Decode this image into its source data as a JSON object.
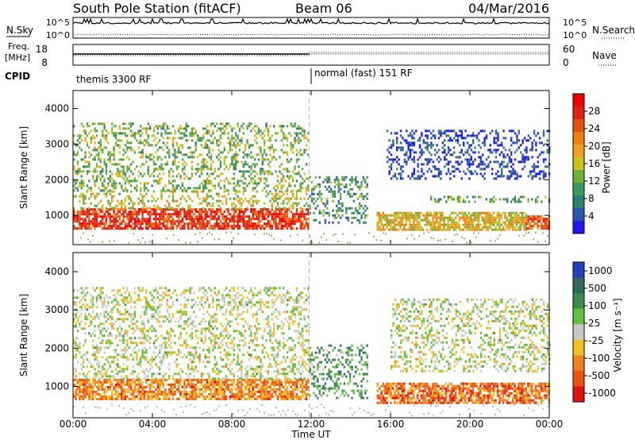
{
  "header": {
    "title": "South Pole Station (fitACF)",
    "beam": "Beam 06",
    "date": "04/Mar/2016"
  },
  "strips": {
    "nsky_label": "N.Sky",
    "nsearch_label": "N.Search",
    "nsky_tick_top": "10^5",
    "nsky_tick_bottom": "10^0",
    "freq_label_1": "Freq.",
    "freq_label_2": "[MHz]",
    "freq_tick_top": "18",
    "freq_tick_bottom": "8",
    "nave_label": "Nave",
    "nave_tick_top": "60",
    "nave_tick_bottom": "0",
    "cpid_label": "CPID",
    "cpid_segments": [
      "themis 3300 RF",
      "normal (fast) 151 RF"
    ]
  },
  "chart_data": [
    {
      "type": "heatmap",
      "panel": "power",
      "ylabel": "Slant Range [km]",
      "yticks": [
        "1000",
        "2000",
        "3000",
        "4000"
      ],
      "ylim": [
        180,
        4500
      ],
      "xlim_hours": [
        0,
        24
      ],
      "colorbar_label": "Power [dB]",
      "colorbar_ticks": [
        "4",
        "8",
        "12",
        "16",
        "20",
        "24",
        "28"
      ],
      "colorscale": [
        "#1b1bf0",
        "#2b55b5",
        "#2e7d72",
        "#3f9a5a",
        "#6bb23c",
        "#c9c21a",
        "#f0a020",
        "#f07f10",
        "#e85010",
        "#e02010",
        "#f00000"
      ],
      "range_bands_km": [
        {
          "from_h": 0.0,
          "to_h": 11.9,
          "low": 650,
          "high": 1200,
          "level": 0.85
        },
        {
          "from_h": 0.0,
          "to_h": 11.9,
          "low": 1200,
          "high": 1700,
          "level": 0.5
        },
        {
          "from_h": 0.0,
          "to_h": 11.9,
          "low": 1700,
          "high": 3600,
          "level": 0.4
        },
        {
          "from_h": 11.9,
          "to_h": 14.8,
          "low": 800,
          "high": 2100,
          "level": 0.3
        },
        {
          "from_h": 15.3,
          "to_h": 22.8,
          "low": 600,
          "high": 1100,
          "level": 0.55
        },
        {
          "from_h": 18.0,
          "to_h": 24.0,
          "low": 1400,
          "high": 1550,
          "level": 0.35
        },
        {
          "from_h": 15.8,
          "to_h": 24.0,
          "low": 2000,
          "high": 3400,
          "level": 0.1
        },
        {
          "from_h": 22.8,
          "to_h": 24.0,
          "low": 600,
          "high": 1000,
          "level": 0.75
        }
      ]
    },
    {
      "type": "heatmap",
      "panel": "velocity",
      "ylabel": "Slant Range [km]",
      "yticks": [
        "1000",
        "2000",
        "3000",
        "4000"
      ],
      "ylim": [
        180,
        4500
      ],
      "xlim_hours": [
        0,
        24
      ],
      "xticks": [
        "00:00",
        "04:00",
        "08:00",
        "12:00",
        "16:00",
        "20:00",
        "00:00"
      ],
      "xlabel": "Time UT",
      "colorbar_label": "Velocity [m s⁻¹]",
      "colorbar_ticks": [
        "1000",
        "500",
        "100",
        "25",
        "-25",
        "-100",
        "-500",
        "-1000"
      ],
      "colorscale": [
        "#2040c0",
        "#2f6a5c",
        "#3b8c4a",
        "#60c040",
        "#c8c8c8",
        "#f0c020",
        "#f08020",
        "#f05010",
        "#e01010"
      ],
      "range_bands_km": [
        {
          "from_h": 0.0,
          "to_h": 11.9,
          "low": 650,
          "high": 1200,
          "level": -0.5
        },
        {
          "from_h": 0.0,
          "to_h": 11.9,
          "low": 1200,
          "high": 3600,
          "level": 0.0
        },
        {
          "from_h": 11.9,
          "to_h": 14.8,
          "low": 700,
          "high": 2100,
          "level": 0.4
        },
        {
          "from_h": 15.3,
          "to_h": 24.0,
          "low": 600,
          "high": 1100,
          "level": -0.6
        },
        {
          "from_h": 16.0,
          "to_h": 24.0,
          "low": 1400,
          "high": 3300,
          "level": 0.0
        }
      ]
    }
  ]
}
